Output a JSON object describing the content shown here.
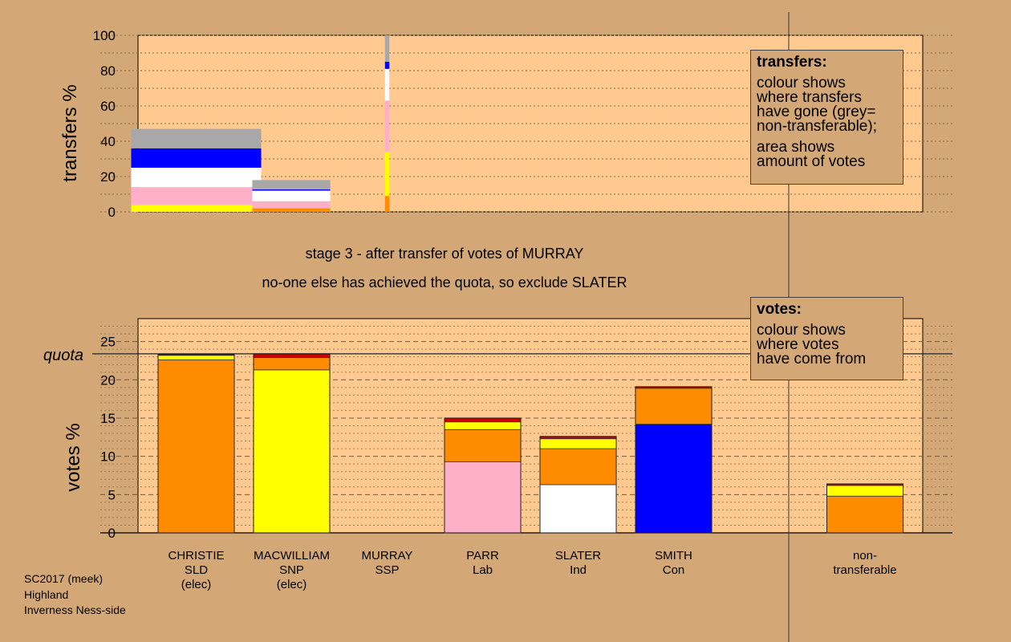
{
  "colors": {
    "background": "#d4a876",
    "plot_bg": "#ffc990",
    "SLD": "#ff8c00",
    "SNP": "#ffff00",
    "SSP": "#cc0000",
    "Lab": "#ffb0c8",
    "Ind": "#ffffff",
    "Con": "#0000ff",
    "non_transferable": "#a8a8a8"
  },
  "stage_title": "stage 3 - after transfer of votes of MURRAY",
  "stage_subtitle": "no-one else has achieved the quota, so exclude SLATER",
  "footer": {
    "line1": "SC2017 (meek)",
    "line2": "Highland",
    "line3": "Inverness Ness-side"
  },
  "transfers_box": {
    "title": "transfers:",
    "text1": "colour shows\nwhere transfers\nhave gone (grey=\nnon-transferable);",
    "text2": "area shows\namount of votes"
  },
  "votes_box": {
    "title": "votes:",
    "text1": "colour shows\nwhere votes\nhave come from"
  },
  "chart_data": [
    {
      "type": "bar",
      "ylabel": "transfers %",
      "ylim": [
        0,
        100
      ],
      "yticks": [
        0,
        20,
        40,
        60,
        80,
        100
      ],
      "grid": true,
      "bars": [
        {
          "source": "CHRISTIE",
          "votes_transferred": 1.5,
          "segments": [
            {
              "to": "SLD",
              "value": 0
            },
            {
              "to": "SNP",
              "value": 4
            },
            {
              "to": "Lab",
              "value": 10
            },
            {
              "to": "Ind",
              "value": 11
            },
            {
              "to": "Con",
              "value": 11
            },
            {
              "to": "non-transferable",
              "value": 11
            }
          ]
        },
        {
          "source": "MACWILLIAM",
          "votes_transferred": 0.9,
          "segments": [
            {
              "to": "SLD",
              "value": 2
            },
            {
              "to": "Lab",
              "value": 4
            },
            {
              "to": "Ind",
              "value": 6
            },
            {
              "to": "Con",
              "value": 0.7
            },
            {
              "to": "non-transferable",
              "value": 5.3
            }
          ]
        },
        {
          "source": "MURRAY",
          "votes_transferred": 0.05,
          "segments": [
            {
              "to": "SLD",
              "value": 9
            },
            {
              "to": "SNP",
              "value": 25
            },
            {
              "to": "Lab",
              "value": 29
            },
            {
              "to": "Ind",
              "value": 18
            },
            {
              "to": "Con",
              "value": 4
            },
            {
              "to": "non-transferable",
              "value": 15
            }
          ]
        }
      ]
    },
    {
      "type": "bar",
      "ylabel": "votes %",
      "ylim": [
        0,
        28
      ],
      "yticks": [
        0,
        5,
        10,
        15,
        20,
        25
      ],
      "quota": 23.4,
      "quota_label": "quota",
      "grid": true,
      "candidates": [
        {
          "name": "CHRISTIE",
          "party": "SLD",
          "note": "(elec)",
          "segments": [
            {
              "from": "SLD",
              "value": 22.6
            },
            {
              "from": "SNP",
              "value": 0.6
            },
            {
              "from": "SSP",
              "value": 0.1
            }
          ]
        },
        {
          "name": "MACWILLIAM",
          "party": "SNP",
          "note": "(elec)",
          "segments": [
            {
              "from": "SNP",
              "value": 21.3
            },
            {
              "from": "SLD",
              "value": 1.6
            },
            {
              "from": "SSP",
              "value": 0.5
            }
          ]
        },
        {
          "name": "MURRAY",
          "party": "SSP",
          "note": "",
          "segments": []
        },
        {
          "name": "PARR",
          "party": "Lab",
          "note": "",
          "segments": [
            {
              "from": "Lab",
              "value": 9.3
            },
            {
              "from": "SLD",
              "value": 4.2
            },
            {
              "from": "SNP",
              "value": 1.0
            },
            {
              "from": "SSP",
              "value": 0.5
            }
          ]
        },
        {
          "name": "SLATER",
          "party": "Ind",
          "note": "",
          "segments": [
            {
              "from": "Ind",
              "value": 6.3
            },
            {
              "from": "SLD",
              "value": 4.7
            },
            {
              "from": "SNP",
              "value": 1.3
            },
            {
              "from": "SSP",
              "value": 0.3
            }
          ]
        },
        {
          "name": "SMITH",
          "party": "Con",
          "note": "",
          "segments": [
            {
              "from": "Con",
              "value": 14.2
            },
            {
              "from": "SLD",
              "value": 4.7
            },
            {
              "from": "SSP",
              "value": 0.2
            }
          ]
        }
      ],
      "non_transferable": {
        "name": "non-",
        "party": "transferable",
        "segments": [
          {
            "from": "SLD",
            "value": 4.8
          },
          {
            "from": "SNP",
            "value": 1.4
          },
          {
            "from": "SSP",
            "value": 0.2
          }
        ]
      }
    }
  ]
}
